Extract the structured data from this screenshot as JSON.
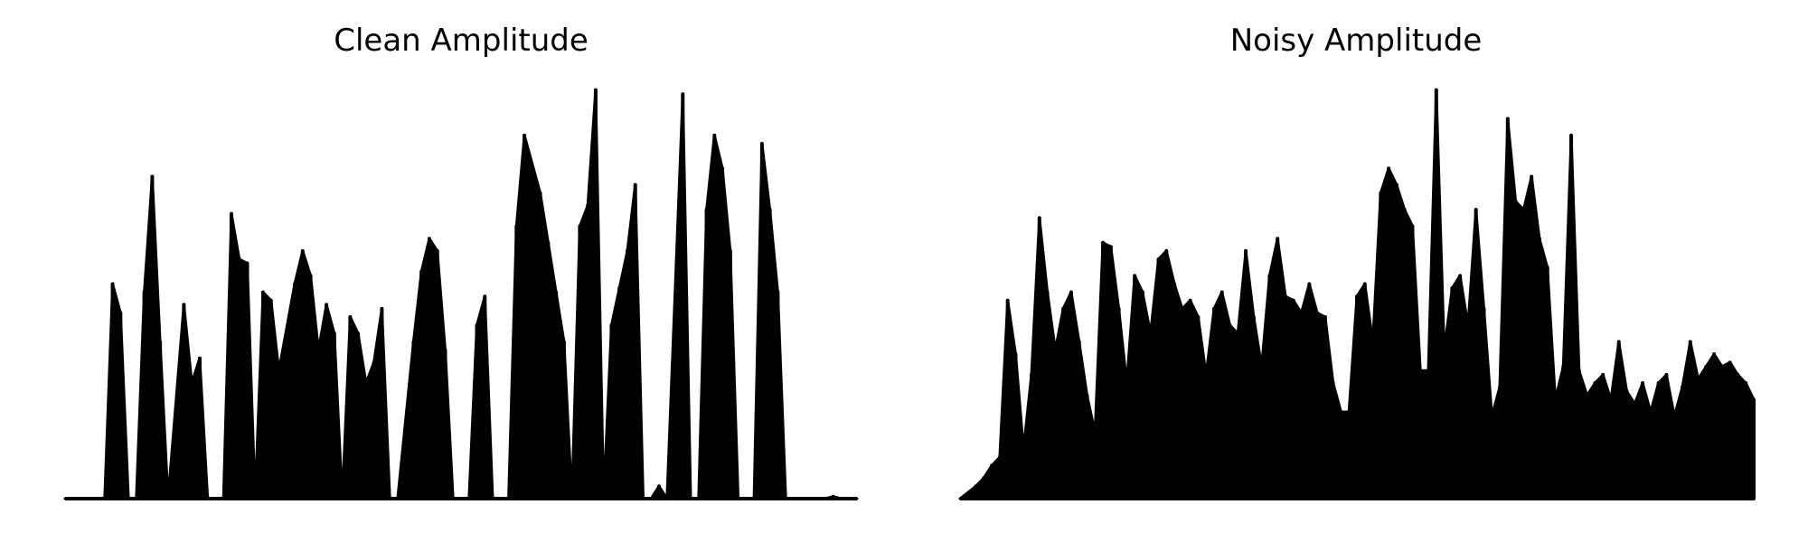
{
  "chart_data": [
    {
      "type": "area",
      "title": "Clean Amplitude",
      "xlabel": "",
      "ylabel": "",
      "axes_visible": false,
      "grid": false,
      "ylim": [
        0,
        1.0
      ],
      "color": "#000000",
      "x": [
        0,
        5,
        6,
        7,
        8,
        9,
        10,
        11,
        12,
        13,
        15,
        16,
        17,
        18,
        19,
        20,
        21,
        22,
        23,
        24,
        25,
        26,
        27,
        29,
        30,
        31,
        32,
        33,
        34,
        35,
        36,
        37,
        38,
        39,
        40,
        41,
        42,
        44,
        45,
        46,
        47,
        48,
        49,
        50,
        51,
        52,
        53,
        54,
        55,
        56,
        57,
        58,
        60,
        61,
        62,
        63,
        64,
        65,
        66,
        67,
        68,
        69,
        70,
        71,
        72,
        73,
        74,
        75,
        76,
        78,
        79,
        80,
        81,
        82,
        83,
        84,
        85,
        86,
        87,
        88,
        89,
        90,
        91,
        92,
        93,
        94,
        95,
        96,
        97,
        98,
        99,
        100
      ],
      "values": [
        0,
        0.0,
        0.52,
        0.45,
        0.0,
        0.0,
        0.5,
        0.78,
        0.38,
        0.0,
        0.47,
        0.28,
        0.34,
        0.0,
        0.0,
        0.0,
        0.69,
        0.58,
        0.57,
        0.0,
        0.5,
        0.48,
        0.31,
        0.52,
        0.6,
        0.54,
        0.36,
        0.47,
        0.4,
        0.0,
        0.44,
        0.4,
        0.28,
        0.33,
        0.46,
        0.0,
        0.0,
        0.38,
        0.55,
        0.63,
        0.6,
        0.36,
        0.0,
        0.0,
        0.0,
        0.42,
        0.49,
        0.0,
        0.0,
        0.0,
        0.66,
        0.88,
        0.74,
        0.62,
        0.5,
        0.38,
        0.0,
        0.66,
        0.71,
        0.99,
        0.0,
        0.42,
        0.51,
        0.6,
        0.76,
        0.0,
        0.0,
        0.03,
        0.0,
        0.98,
        0.0,
        0.0,
        0.7,
        0.88,
        0.8,
        0.6,
        0.0,
        0.0,
        0.0,
        0.86,
        0.7,
        0.5,
        0.0,
        0.0,
        0.0,
        0.0,
        0.0,
        0.0,
        0.005,
        0.0,
        0.0,
        0.0
      ]
    },
    {
      "type": "area",
      "title": "Noisy Amplitude",
      "xlabel": "",
      "ylabel": "",
      "axes_visible": false,
      "grid": false,
      "ylim": [
        0,
        1.0
      ],
      "color": "#000000",
      "x": [
        0,
        2,
        3,
        4,
        5,
        6,
        7,
        8,
        9,
        10,
        11,
        12,
        13,
        14,
        15,
        16,
        17,
        18,
        19,
        20,
        21,
        22,
        23,
        24,
        25,
        26,
        27,
        28,
        29,
        30,
        31,
        32,
        33,
        34,
        35,
        36,
        37,
        38,
        39,
        40,
        41,
        42,
        43,
        44,
        45,
        46,
        47,
        48,
        49,
        50,
        51,
        52,
        53,
        54,
        55,
        56,
        57,
        58,
        59,
        60,
        61,
        62,
        63,
        64,
        65,
        66,
        67,
        68,
        69,
        70,
        71,
        72,
        73,
        74,
        75,
        76,
        77,
        78,
        79,
        80,
        81,
        82,
        83,
        84,
        85,
        86,
        87,
        88,
        89,
        90,
        91,
        92,
        93,
        94,
        95,
        96,
        97,
        98,
        99,
        100
      ],
      "values": [
        0,
        0.03,
        0.05,
        0.08,
        0.1,
        0.48,
        0.35,
        0.12,
        0.3,
        0.68,
        0.5,
        0.36,
        0.46,
        0.5,
        0.38,
        0.25,
        0.16,
        0.62,
        0.61,
        0.46,
        0.28,
        0.54,
        0.5,
        0.4,
        0.58,
        0.6,
        0.52,
        0.46,
        0.48,
        0.44,
        0.3,
        0.46,
        0.5,
        0.42,
        0.4,
        0.6,
        0.44,
        0.32,
        0.54,
        0.63,
        0.49,
        0.48,
        0.45,
        0.52,
        0.45,
        0.44,
        0.28,
        0.21,
        0.21,
        0.49,
        0.52,
        0.38,
        0.74,
        0.8,
        0.76,
        0.7,
        0.66,
        0.31,
        0.31,
        0.99,
        0.36,
        0.51,
        0.54,
        0.42,
        0.7,
        0.46,
        0.2,
        0.27,
        0.92,
        0.72,
        0.7,
        0.78,
        0.63,
        0.56,
        0.24,
        0.32,
        0.88,
        0.31,
        0.25,
        0.28,
        0.3,
        0.24,
        0.38,
        0.26,
        0.23,
        0.28,
        0.21,
        0.28,
        0.3,
        0.2,
        0.27,
        0.38,
        0.29,
        0.32,
        0.35,
        0.32,
        0.33,
        0.3,
        0.28,
        0.24
      ]
    }
  ]
}
